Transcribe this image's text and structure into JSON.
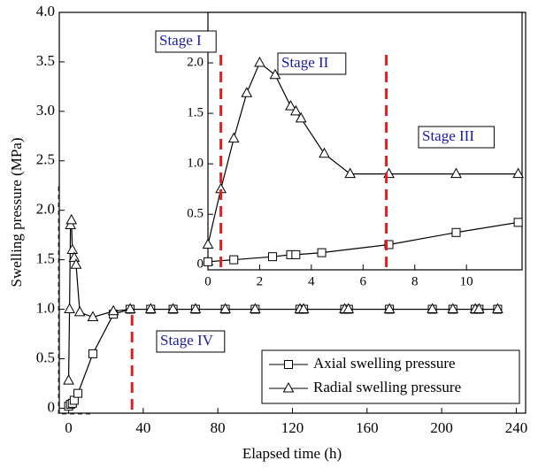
{
  "chart_data": [
    {
      "type": "line",
      "x_label": "Elapsed time (h)",
      "y_label": "Swelling pressure (MPa)",
      "xlim": [
        -5,
        245
      ],
      "ylim": [
        -0.05,
        4.0
      ],
      "xticks": [
        0,
        40,
        80,
        120,
        160,
        200,
        240
      ],
      "yticks": [
        0,
        0.5,
        {
          "value": 1,
          "label": "1.0"
        },
        1.5,
        {
          "value": 2,
          "label": "2.0"
        },
        2.5,
        {
          "value": 3,
          "label": "3.0"
        },
        3.5,
        {
          "value": 4,
          "label": "4.0"
        }
      ],
      "legend": "lower right",
      "vlines": [
        34
      ],
      "annotations": [
        "Stage IV"
      ],
      "series": [
        {
          "name": "Axial swelling pressure",
          "color": "#000000",
          "marker": "square",
          "x": [
            0,
            1,
            2,
            3,
            5,
            13,
            24,
            33,
            44,
            56,
            68,
            84,
            100,
            124,
            126,
            148,
            150,
            172,
            195,
            206,
            218,
            220,
            230
          ],
          "values": [
            0.02,
            0.04,
            0.05,
            0.08,
            0.15,
            0.55,
            0.95,
            1.0,
            1.0,
            1.0,
            1.0,
            1.0,
            1.0,
            1.0,
            1.0,
            1.0,
            1.0,
            1.0,
            1.0,
            1.0,
            1.0,
            1.0,
            1.0
          ]
        },
        {
          "name": "Radial swelling pressure",
          "color": "#000000",
          "marker": "triangle",
          "x": [
            0,
            0.5,
            1,
            1.5,
            2,
            3,
            4,
            6,
            13,
            24,
            33,
            44,
            56,
            68,
            84,
            100,
            124,
            126,
            148,
            150,
            172,
            195,
            206,
            218,
            220,
            230
          ],
          "values": [
            0.28,
            1.0,
            1.85,
            1.9,
            1.6,
            1.52,
            1.45,
            0.97,
            0.92,
            0.98,
            1.0,
            1.0,
            1.0,
            1.0,
            1.0,
            1.0,
            1.0,
            1.0,
            1.0,
            1.0,
            1.0,
            1.0,
            1.0,
            1.0,
            1.0,
            1.0
          ]
        }
      ]
    },
    {
      "type": "line",
      "xlim": [
        0,
        12.15
      ],
      "ylim": [
        -0.05,
        2.5
      ],
      "xticks": [
        0,
        2,
        4,
        6,
        8,
        10
      ],
      "yticks": [
        0,
        0.5,
        {
          "value": 1,
          "label": "1.0"
        },
        1.5,
        {
          "value": 2,
          "label": "2.0"
        }
      ],
      "vlines": [
        0.5,
        6.9
      ],
      "annotations": [
        "Stage I",
        "Stage II",
        "Stage III"
      ],
      "series": [
        {
          "name": "Axial swelling pressure",
          "color": "#000000",
          "marker": "square",
          "x": [
            0,
            1,
            2.5,
            3.2,
            3.4,
            4.4,
            7,
            9.6,
            12
          ],
          "values": [
            0.03,
            0.05,
            0.08,
            0.1,
            0.1,
            0.12,
            0.2,
            0.32,
            0.42
          ]
        },
        {
          "name": "Radial swelling pressure",
          "color": "#000000",
          "marker": "triangle",
          "x": [
            0,
            0.5,
            1,
            1.5,
            2,
            2.6,
            3.2,
            3.4,
            3.6,
            4.5,
            5.5,
            7,
            9.6,
            12
          ],
          "values": [
            0.2,
            0.75,
            1.25,
            1.7,
            2.0,
            1.88,
            1.57,
            1.52,
            1.45,
            1.1,
            0.9,
            0.9,
            0.9,
            0.9
          ]
        }
      ]
    }
  ]
}
